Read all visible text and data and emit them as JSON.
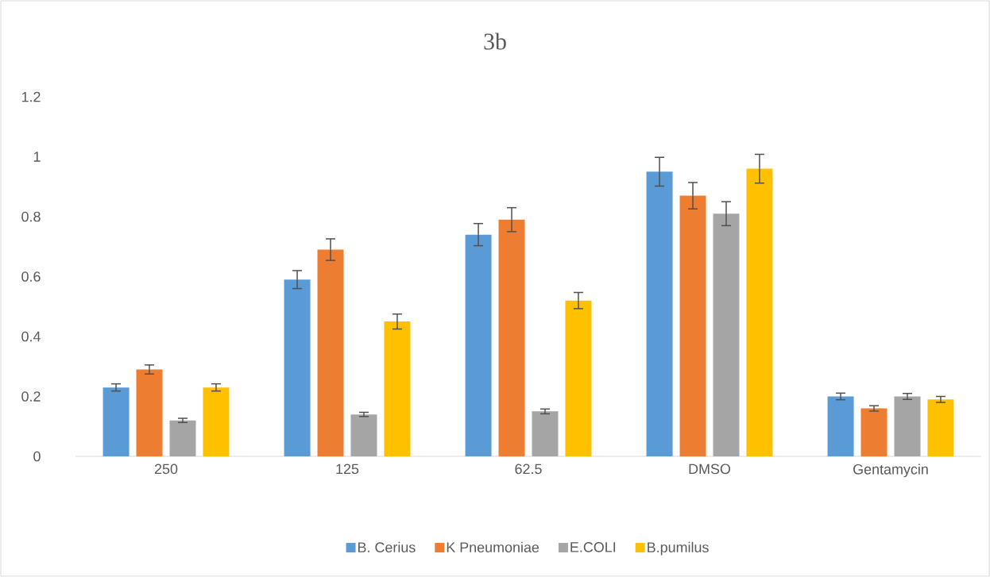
{
  "chart_data": {
    "type": "bar",
    "title": "3b",
    "categories": [
      "250",
      "125",
      "62.5",
      "DMSO",
      "Gentamycin"
    ],
    "series": [
      {
        "name": "B. Cerius",
        "color": "#5b9bd5",
        "values": [
          0.23,
          0.59,
          0.74,
          0.95,
          0.2
        ],
        "errors": [
          0.012,
          0.03,
          0.037,
          0.048,
          0.011
        ]
      },
      {
        "name": "K Pneumoniae",
        "color": "#ed7d31",
        "values": [
          0.29,
          0.69,
          0.79,
          0.87,
          0.16
        ],
        "errors": [
          0.015,
          0.036,
          0.04,
          0.044,
          0.009
        ]
      },
      {
        "name": "E.COLI",
        "color": "#a5a5a5",
        "values": [
          0.12,
          0.14,
          0.15,
          0.81,
          0.2
        ],
        "errors": [
          0.007,
          0.007,
          0.008,
          0.04,
          0.01
        ]
      },
      {
        "name": "B.pumilus",
        "color": "#ffc000",
        "values": [
          0.23,
          0.45,
          0.52,
          0.96,
          0.19
        ],
        "errors": [
          0.012,
          0.025,
          0.027,
          0.048,
          0.01
        ]
      }
    ],
    "ylim": [
      0,
      1.2
    ],
    "yticks": [
      0,
      0.2,
      0.4,
      0.6,
      0.8,
      1,
      1.2
    ],
    "legend": "bottom"
  }
}
